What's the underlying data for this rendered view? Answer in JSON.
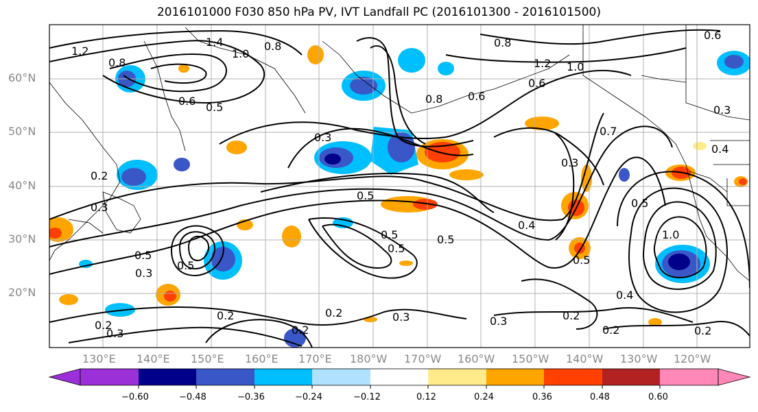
{
  "title": "2016101000 F030 850 hPa PV, IVT Landfall PC (2016101300 - 2016101500)",
  "lat_labels": [
    "60°N",
    "50°N",
    "40°N",
    "30°N",
    "20°N"
  ],
  "lon_labels": [
    "130°E",
    "140°E",
    "150°E",
    "160°E",
    "170°E",
    "180°W",
    "170°W",
    "160°W",
    "150°W",
    "140°W",
    "130°W",
    "120°W"
  ],
  "colorbar": {
    "tick_labels": [
      "−0.60",
      "−0.48",
      "−0.36",
      "−0.24",
      "−0.12",
      "0.12",
      "0.24",
      "0.36",
      "0.48",
      "0.60"
    ],
    "colors": [
      "#9b30d9",
      "#00008b",
      "#3a57c7",
      "#00bfff",
      "#b0e2ff",
      "#ffffff",
      "#ffeb8a",
      "#ffa500",
      "#ff4000",
      "#b22222",
      "#ff88b8"
    ]
  },
  "contour_labels": [
    "1.4",
    "1.2",
    "1.0",
    "0.8",
    "0.8",
    "0.6",
    "0.5",
    "0.3",
    "0.8",
    "1.2",
    "1.0",
    "0.6",
    "0.8",
    "0.6",
    "0.3",
    "0.7",
    "0.3",
    "0.4",
    "0.2",
    "0.3",
    "0.5",
    "0.4",
    "0.5",
    "0.5",
    "0.5",
    "0.5",
    "1.0",
    "0.5",
    "0.5",
    "0.5",
    "0.3",
    "0.4",
    "0.2",
    "0.3",
    "0.2",
    "0.2",
    "0.2",
    "0.3",
    "0.2",
    "0.2",
    "0.2",
    "0.6",
    "0.3"
  ]
}
